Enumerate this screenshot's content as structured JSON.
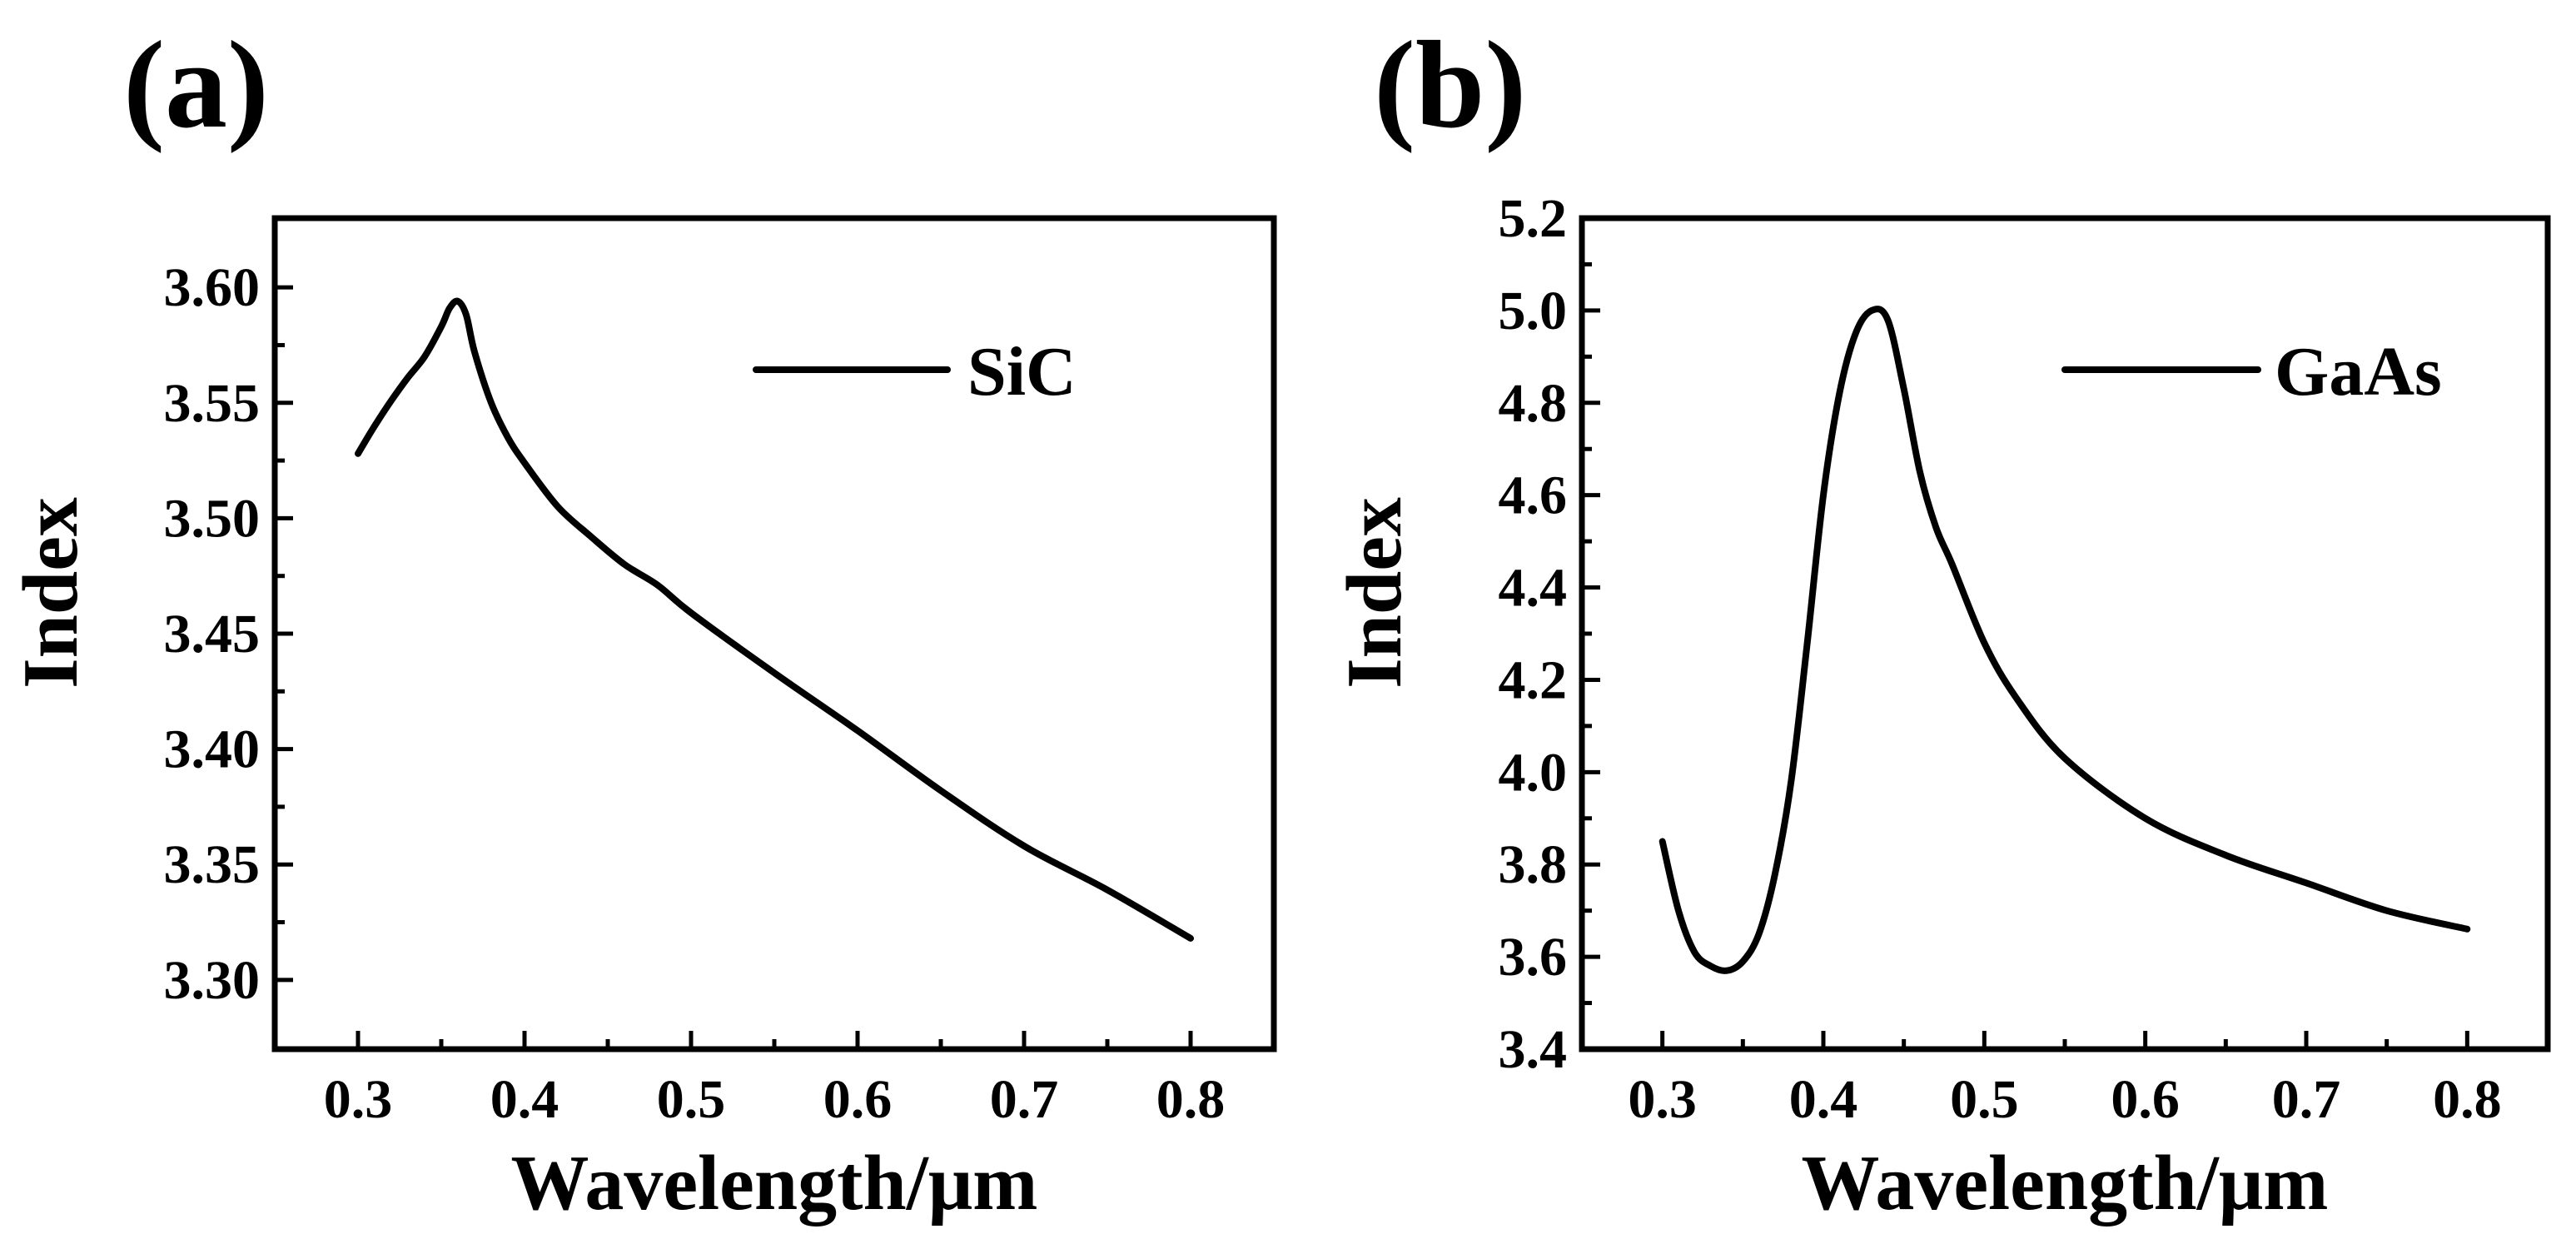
{
  "chart_data": [
    {
      "panel_label": "(a)",
      "type": "line",
      "xlabel": "Wavelength/μm",
      "ylabel": "Index",
      "xlim": [
        0.25,
        0.85
      ],
      "ylim": [
        3.27,
        3.63
      ],
      "xticks": [
        0.3,
        0.4,
        0.5,
        0.6,
        0.7,
        0.8
      ],
      "xtick_labels": [
        "0.3",
        "0.4",
        "0.5",
        "0.6",
        "0.7",
        "0.8"
      ],
      "yticks": [
        3.3,
        3.35,
        3.4,
        3.45,
        3.5,
        3.55,
        3.6
      ],
      "ytick_labels": [
        "3.30",
        "3.35",
        "3.40",
        "3.45",
        "3.50",
        "3.55",
        "3.60"
      ],
      "grid": false,
      "legend_position": "top-right",
      "series": [
        {
          "name": "SiC",
          "x": [
            0.3,
            0.31,
            0.32,
            0.33,
            0.34,
            0.35,
            0.355,
            0.36,
            0.365,
            0.37,
            0.38,
            0.39,
            0.4,
            0.42,
            0.44,
            0.46,
            0.48,
            0.5,
            0.55,
            0.6,
            0.65,
            0.7,
            0.75,
            0.8
          ],
          "y": [
            3.528,
            3.54,
            3.551,
            3.561,
            3.57,
            3.583,
            3.591,
            3.594,
            3.588,
            3.572,
            3.55,
            3.535,
            3.524,
            3.505,
            3.492,
            3.48,
            3.471,
            3.459,
            3.433,
            3.408,
            3.382,
            3.358,
            3.339,
            3.318
          ]
        }
      ]
    },
    {
      "panel_label": "(b)",
      "type": "line",
      "xlabel": "Wavelength/μm",
      "ylabel": "Index",
      "xlim": [
        0.25,
        0.85
      ],
      "ylim": [
        3.4,
        5.2
      ],
      "xticks": [
        0.3,
        0.4,
        0.5,
        0.6,
        0.7,
        0.8
      ],
      "xtick_labels": [
        "0.3",
        "0.4",
        "0.5",
        "0.6",
        "0.7",
        "0.8"
      ],
      "yticks": [
        3.4,
        3.6,
        3.8,
        4.0,
        4.2,
        4.4,
        4.6,
        4.8,
        5.0,
        5.2
      ],
      "ytick_labels": [
        "3.4",
        "3.6",
        "3.8",
        "4.0",
        "4.2",
        "4.4",
        "4.6",
        "4.8",
        "5.0",
        "5.2"
      ],
      "grid": false,
      "legend_position": "top-right",
      "series": [
        {
          "name": "GaAs",
          "x": [
            0.3,
            0.31,
            0.32,
            0.33,
            0.34,
            0.35,
            0.36,
            0.37,
            0.38,
            0.39,
            0.4,
            0.41,
            0.42,
            0.43,
            0.44,
            0.45,
            0.46,
            0.47,
            0.48,
            0.5,
            0.52,
            0.55,
            0.6,
            0.65,
            0.7,
            0.75,
            0.8
          ],
          "y": [
            3.85,
            3.7,
            3.61,
            3.58,
            3.57,
            3.59,
            3.65,
            3.78,
            3.98,
            4.28,
            4.6,
            4.82,
            4.95,
            5.0,
            4.98,
            4.83,
            4.65,
            4.53,
            4.45,
            4.28,
            4.16,
            4.03,
            3.9,
            3.82,
            3.76,
            3.7,
            3.66
          ]
        }
      ]
    }
  ]
}
